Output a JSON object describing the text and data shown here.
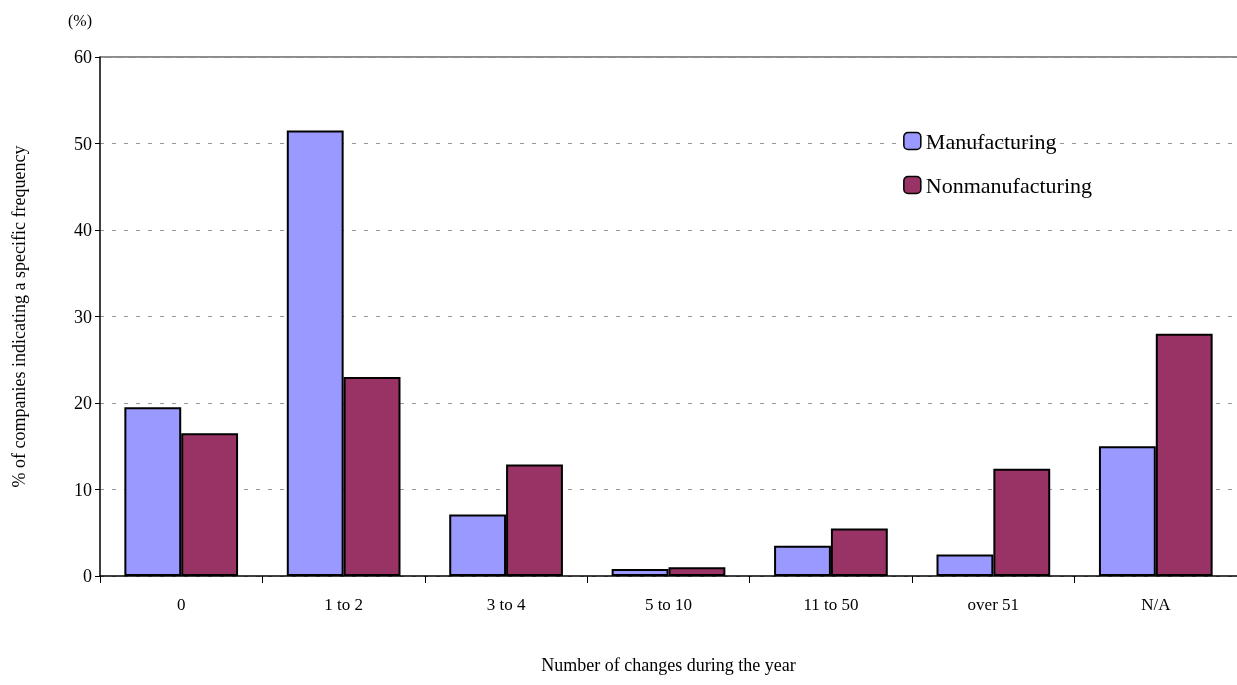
{
  "chart_data": {
    "type": "bar",
    "xlabel": "Number of changes during the year",
    "ylabel": "% of companies indicating a specific frequency",
    "annotations": [
      "(%)"
    ],
    "categories": [
      "0",
      "1 to 2",
      "3 to 4",
      "5 to 10",
      "11 to 50",
      "over 51",
      "N/A"
    ],
    "series": [
      {
        "name": "Manufacturing",
        "color": "#9999ff",
        "values": [
          19.5,
          51.5,
          7.1,
          0.8,
          3.5,
          2.5,
          15
        ]
      },
      {
        "name": "Nonmanufacturing",
        "color": "#993366",
        "values": [
          16.5,
          23,
          12.9,
          1.0,
          5.5,
          12.4,
          28
        ]
      }
    ],
    "ylim": [
      0,
      60
    ],
    "yticks": [
      0,
      10,
      20,
      30,
      40,
      50,
      60
    ],
    "grid": "y",
    "legend": "top right"
  }
}
